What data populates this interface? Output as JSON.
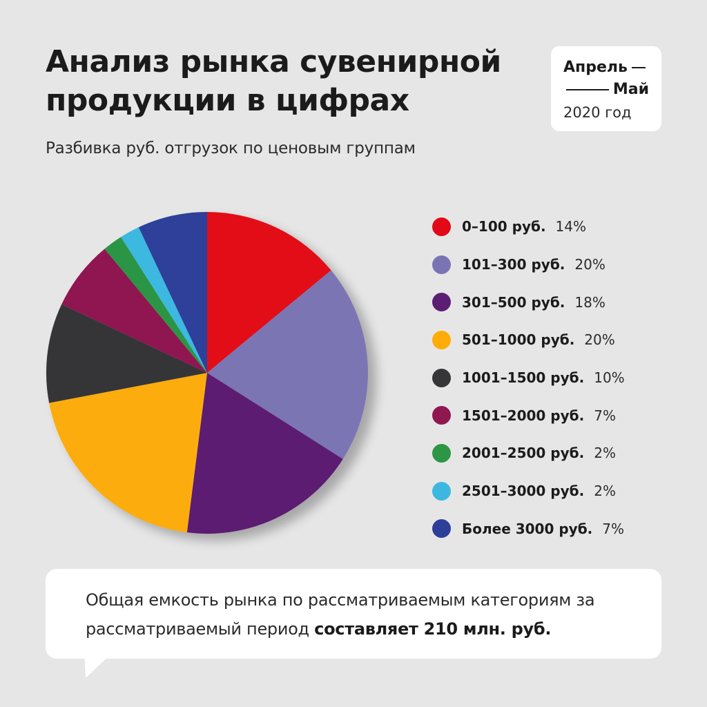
{
  "header": {
    "title": "Анализ рынка сувенирной продукции в цифрах",
    "subtitle": "Разбивка руб. отгрузок по ценовым группам"
  },
  "date_card": {
    "line1": "Апрель",
    "line2": "Май",
    "line3": "2020 год"
  },
  "chart_data": {
    "type": "pie",
    "title": "Анализ рынка сувенирной продукции в цифрах",
    "subtitle": "Разбивка руб. отгрузок по ценовым группам",
    "legend_position": "right",
    "slices": [
      {
        "label": "0–100 руб.",
        "value": 14,
        "display": "14%",
        "color": "#e20a17"
      },
      {
        "label": "101–300 руб.",
        "value": 20,
        "display": "20%",
        "color": "#7b74b4"
      },
      {
        "label": "301–500 руб.",
        "value": 18,
        "display": "18%",
        "color": "#5c1e72"
      },
      {
        "label": "501–1000 руб.",
        "value": 20,
        "display": "20%",
        "color": "#fdac08"
      },
      {
        "label": "1001–1500 руб.",
        "value": 10,
        "display": "10%",
        "color": "#363638"
      },
      {
        "label": "1501–2000 руб.",
        "value": 7,
        "display": "7%",
        "color": "#901851"
      },
      {
        "label": "2001–2500 руб.",
        "value": 2,
        "display": "2%",
        "color": "#2c9644"
      },
      {
        "label": "2501–3000 руб.",
        "value": 2,
        "display": "2%",
        "color": "#3cb8e0"
      },
      {
        "label": "Более 3000 руб.",
        "value": 7,
        "display": "7%",
        "color": "#2e3f9a"
      }
    ]
  },
  "note": {
    "text_part1": "Общая емкость рынка по рассматриваемым категориям за рассматриваемый период",
    "text_bold": "составляет 210 млн. руб."
  }
}
